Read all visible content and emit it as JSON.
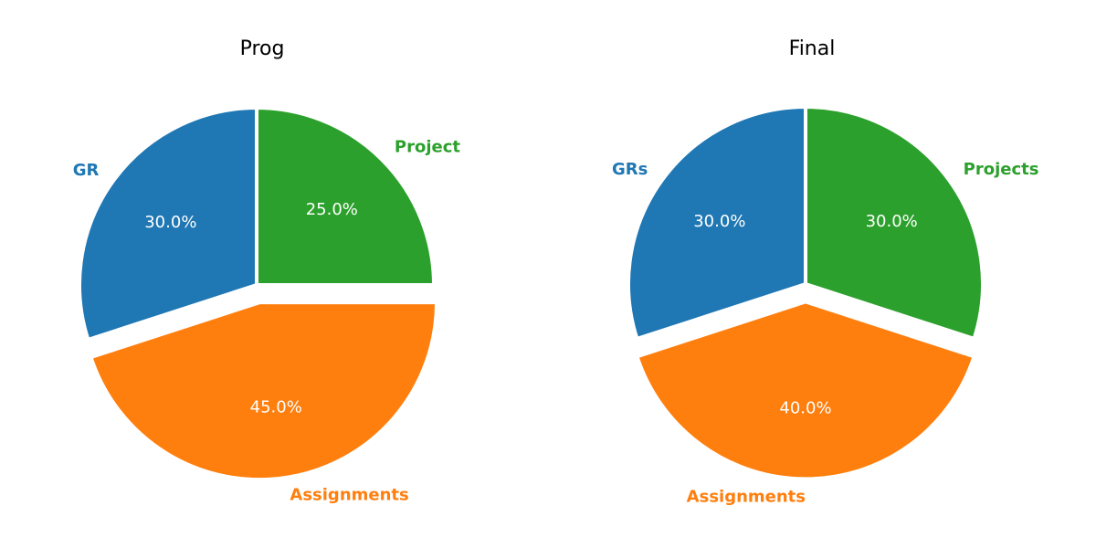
{
  "chart_data": [
    {
      "type": "pie",
      "title": "Prog",
      "start_angle_deg": 90,
      "direction": "counterclockwise",
      "slices": [
        {
          "label": "GR",
          "value": 30.0,
          "percent_label": "30.0%",
          "color": "#1f77b4",
          "exploded": false
        },
        {
          "label": "Assignments",
          "value": 45.0,
          "percent_label": "45.0%",
          "color": "#ff7f0e",
          "exploded": true
        },
        {
          "label": "Project",
          "value": 25.0,
          "percent_label": "25.0%",
          "color": "#2ca02c",
          "exploded": false
        }
      ]
    },
    {
      "type": "pie",
      "title": "Final",
      "start_angle_deg": 90,
      "direction": "counterclockwise",
      "slices": [
        {
          "label": "GRs",
          "value": 30.0,
          "percent_label": "30.0%",
          "color": "#1f77b4",
          "exploded": false
        },
        {
          "label": "Assignments",
          "value": 40.0,
          "percent_label": "40.0%",
          "color": "#ff7f0e",
          "exploded": true
        },
        {
          "label": "Projects",
          "value": 30.0,
          "percent_label": "30.0%",
          "color": "#2ca02c",
          "exploded": false
        }
      ]
    }
  ]
}
